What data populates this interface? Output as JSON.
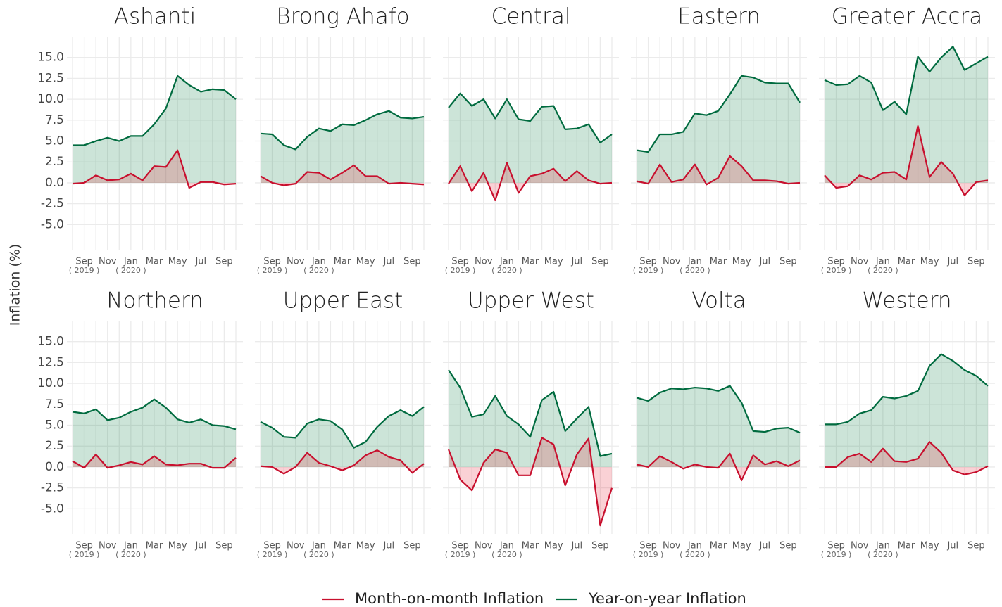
{
  "chart_data": {
    "type": "area-line",
    "ylabel": "Inflation (%)",
    "categories": [
      null,
      "Sep",
      null,
      "Nov",
      null,
      "Jan",
      null,
      "Mar",
      null,
      "May",
      null,
      "Jul",
      null,
      "Sep",
      null
    ],
    "category_years": [
      null,
      "( 2019 )",
      null,
      null,
      null,
      "( 2020 )",
      null,
      null,
      null,
      null,
      null,
      null,
      null,
      null,
      null
    ],
    "ylim": [
      -8,
      17.5
    ],
    "yticks": [
      {
        "value": -5,
        "label": "-5.0"
      },
      -2.5,
      {
        "value": 0,
        "label": "0.0"
      },
      2.5,
      {
        "value": 5,
        "label": "5.0"
      },
      7.5,
      {
        "value": 10,
        "label": "10.0"
      },
      12.5,
      {
        "value": 15,
        "label": "15.0"
      }
    ],
    "grid": true,
    "legend": "bottom",
    "series": [
      {
        "name": "Month-on-month Inflation",
        "color": "#c8102e"
      },
      {
        "name": "Year-on-year Inflation",
        "color": "#006b3f"
      }
    ],
    "panels": [
      {
        "title": "Ashanti",
        "series": [
          {
            "values": [
              -0.1,
              0,
              0.9,
              0.3,
              0.4,
              1.1,
              0.3,
              2.0,
              1.9,
              3.9,
              -0.6,
              0.1,
              0.1,
              -0.2,
              -0.1
            ]
          },
          {
            "values": [
              4.5,
              4.5,
              5.0,
              5.4,
              5.0,
              5.6,
              5.6,
              7.0,
              8.9,
              12.8,
              11.7,
              10.9,
              11.2,
              11.1,
              10.0
            ]
          }
        ]
      },
      {
        "title": "Brong Ahafo",
        "series": [
          {
            "values": [
              0.8,
              0,
              -0.3,
              -0.1,
              1.3,
              1.2,
              0.4,
              1.2,
              2.1,
              0.8,
              0.8,
              -0.1,
              0,
              -0.1,
              -0.2
            ]
          },
          {
            "values": [
              5.9,
              5.8,
              4.5,
              4.0,
              5.5,
              6.5,
              6.2,
              7.0,
              6.9,
              7.5,
              8.2,
              8.6,
              7.8,
              7.7,
              7.9
            ]
          }
        ]
      },
      {
        "title": "Central",
        "series": [
          {
            "values": [
              -0.1,
              2.0,
              -1.0,
              1.2,
              -2.1,
              2.4,
              -1.2,
              0.8,
              1.1,
              1.7,
              0.2,
              1.4,
              0.3,
              -0.1,
              0
            ]
          },
          {
            "values": [
              9.0,
              10.7,
              9.2,
              10.0,
              7.7,
              10.0,
              7.6,
              7.4,
              9.1,
              9.2,
              6.4,
              6.5,
              7.0,
              4.8,
              5.8
            ]
          }
        ]
      },
      {
        "title": "Eastern",
        "series": [
          {
            "values": [
              0.2,
              -0.1,
              2.2,
              0.1,
              0.4,
              2.2,
              -0.2,
              0.6,
              3.2,
              2.0,
              0.3,
              0.3,
              0.2,
              -0.1,
              0
            ]
          },
          {
            "values": [
              3.9,
              3.7,
              5.8,
              5.8,
              6.1,
              8.3,
              8.1,
              8.6,
              10.6,
              12.8,
              12.6,
              12.0,
              11.9,
              11.9,
              9.6
            ]
          }
        ]
      },
      {
        "title": "Greater Accra",
        "series": [
          {
            "values": [
              0.9,
              -0.6,
              -0.4,
              0.9,
              0.4,
              1.2,
              1.3,
              0.4,
              6.8,
              0.7,
              2.5,
              1.1,
              -1.5,
              0.1,
              0.3
            ]
          },
          {
            "values": [
              12.3,
              11.7,
              11.8,
              12.8,
              12.0,
              8.7,
              9.7,
              8.2,
              15.1,
              13.3,
              15.0,
              16.3,
              13.5,
              14.3,
              15.1
            ]
          }
        ]
      },
      {
        "title": "Northern",
        "series": [
          {
            "values": [
              0.7,
              -0.1,
              1.5,
              -0.1,
              0.2,
              0.6,
              0.3,
              1.3,
              0.3,
              0.2,
              0.4,
              0.4,
              -0.1,
              -0.1,
              1.1
            ]
          },
          {
            "values": [
              6.6,
              6.4,
              6.9,
              5.6,
              5.9,
              6.6,
              7.1,
              8.1,
              7.1,
              5.7,
              5.3,
              5.7,
              5.0,
              4.9,
              4.5
            ]
          }
        ]
      },
      {
        "title": "Upper East",
        "series": [
          {
            "values": [
              0.1,
              0,
              -0.8,
              0,
              1.7,
              0.5,
              0.1,
              -0.4,
              0.2,
              1.4,
              2.0,
              1.2,
              0.8,
              -0.7,
              0.4
            ]
          },
          {
            "values": [
              5.4,
              4.7,
              3.6,
              3.5,
              5.2,
              5.7,
              5.5,
              4.5,
              2.3,
              3.0,
              4.8,
              6.1,
              6.8,
              6.1,
              7.2
            ]
          }
        ]
      },
      {
        "title": "Upper West",
        "series": [
          {
            "values": [
              2.1,
              -1.5,
              -2.8,
              0.5,
              2.1,
              1.7,
              -1.0,
              -1.0,
              3.5,
              2.7,
              -2.2,
              1.5,
              3.4,
              -7.0,
              -2.5
            ]
          },
          {
            "values": [
              11.6,
              9.5,
              6.0,
              6.3,
              8.5,
              6.1,
              5.1,
              3.6,
              8.0,
              9.0,
              4.3,
              5.8,
              7.2,
              1.3,
              1.6
            ]
          }
        ]
      },
      {
        "title": "Volta",
        "series": [
          {
            "values": [
              0.3,
              0,
              1.3,
              0.6,
              -0.2,
              0.3,
              0,
              -0.1,
              1.6,
              -1.6,
              1.4,
              0.3,
              0.7,
              0.1,
              0.8
            ]
          },
          {
            "values": [
              8.3,
              7.9,
              8.9,
              9.4,
              9.3,
              9.5,
              9.4,
              9.1,
              9.7,
              7.7,
              4.3,
              4.2,
              4.6,
              4.7,
              4.1
            ]
          }
        ]
      },
      {
        "title": "Western",
        "series": [
          {
            "values": [
              0,
              0,
              1.2,
              1.6,
              0.6,
              2.2,
              0.7,
              0.6,
              1.0,
              3.0,
              1.7,
              -0.4,
              -0.9,
              -0.6,
              0.1
            ]
          },
          {
            "values": [
              5.1,
              5.1,
              5.4,
              6.4,
              6.8,
              8.4,
              8.2,
              8.5,
              9.1,
              12.1,
              13.5,
              12.7,
              11.6,
              10.9,
              9.7
            ]
          }
        ]
      }
    ]
  }
}
